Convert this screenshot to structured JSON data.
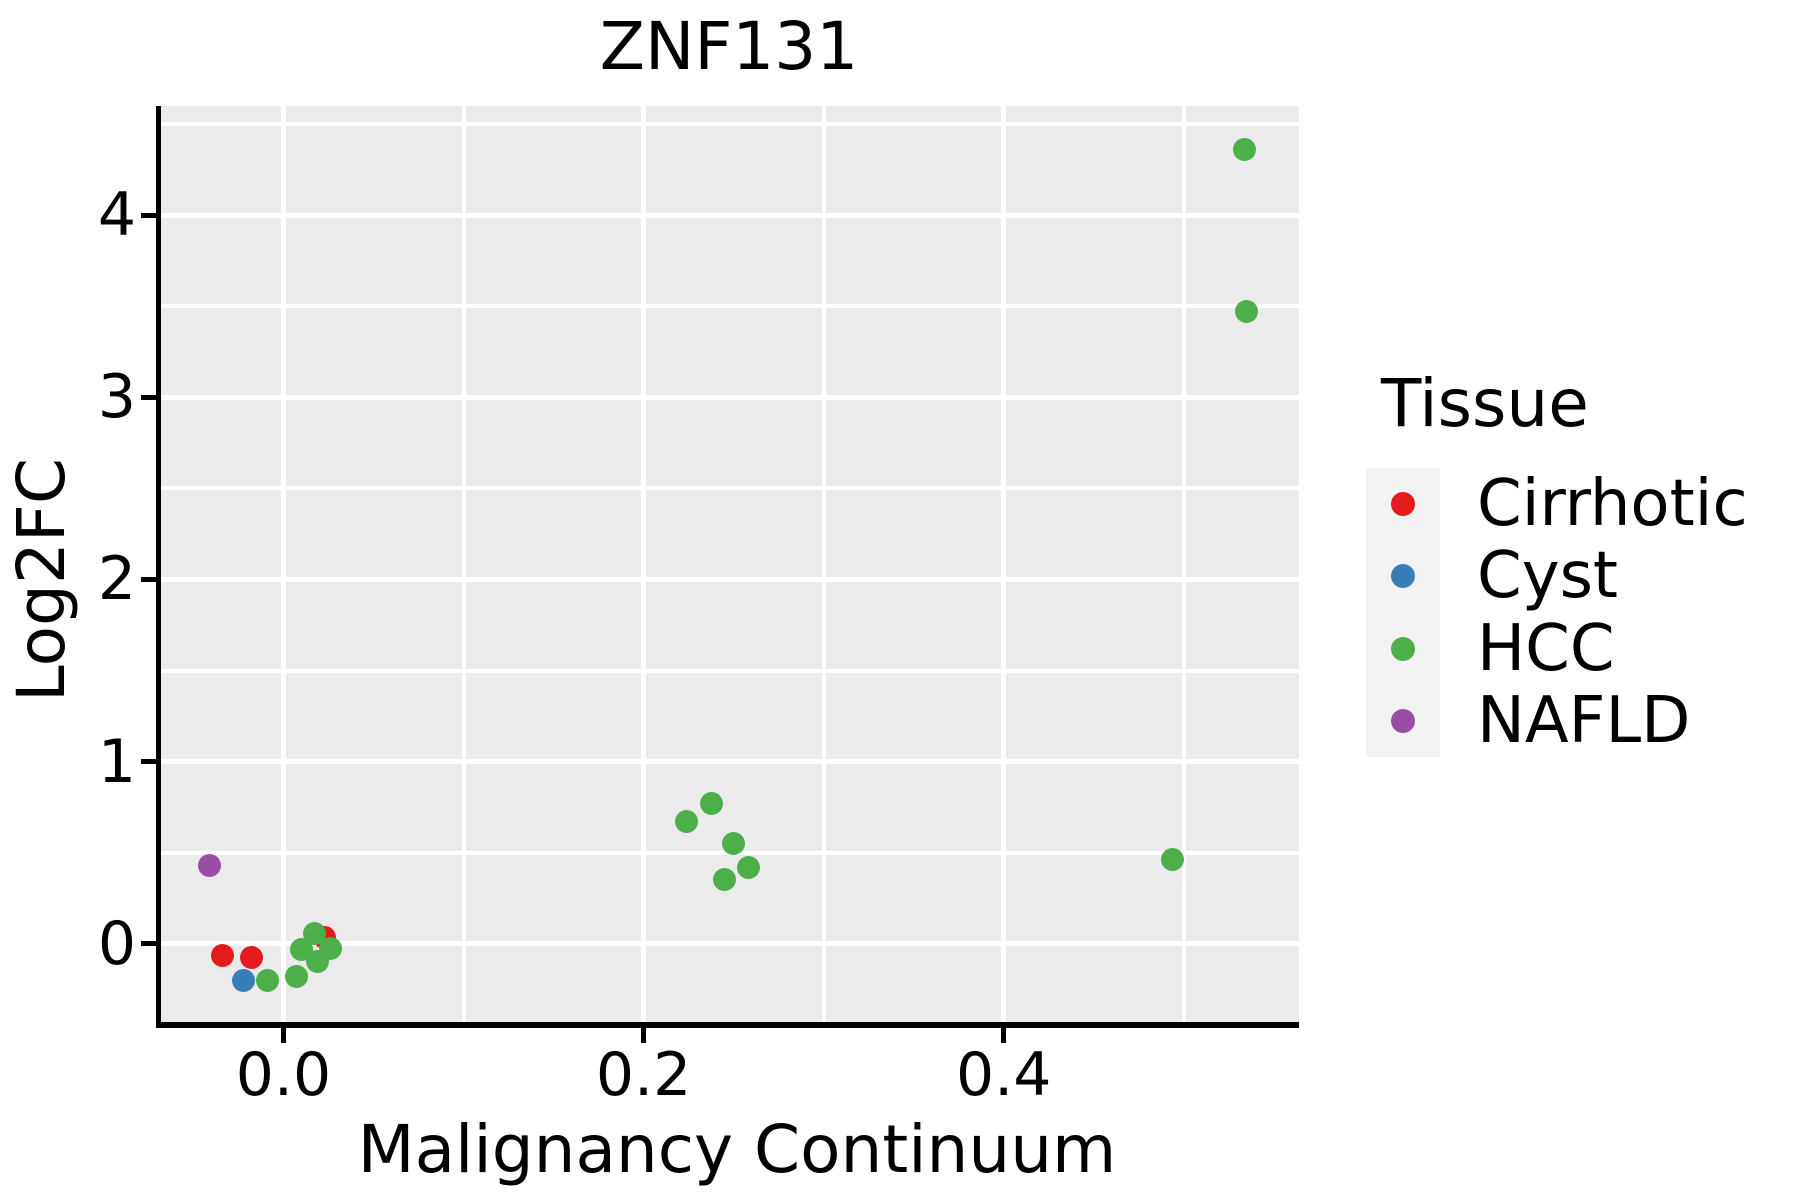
{
  "figure": {
    "background": "#ffffff",
    "text_color": "#000000"
  },
  "chart_data": {
    "type": "scatter",
    "title": "ZNF131",
    "xlabel": "Malignancy Continuum",
    "ylabel": "Log2FC",
    "xlim": [
      -0.068,
      0.564
    ],
    "ylim": [
      -0.43,
      4.6
    ],
    "grid": true,
    "panel_background": "#ebebeb",
    "grid_color": "#ffffff",
    "x_ticks": {
      "values": [
        0.0,
        0.2,
        0.4
      ],
      "labels": [
        "0.0",
        "0.2",
        "0.4"
      ],
      "minor": [
        0.1,
        0.3,
        0.5
      ]
    },
    "y_ticks": {
      "values": [
        0,
        1,
        2,
        3,
        4
      ],
      "labels": [
        "0",
        "1",
        "2",
        "3",
        "4"
      ],
      "minor": [
        0.5,
        1.5,
        2.5,
        3.5,
        4.5
      ]
    },
    "legend": {
      "title": "Tissue",
      "position": "right",
      "entries": [
        {
          "label": "Cirrhotic",
          "color": "#e41a1c"
        },
        {
          "label": "Cyst",
          "color": "#377eb8"
        },
        {
          "label": "HCC",
          "color": "#4daf4a"
        },
        {
          "label": "NAFLD",
          "color": "#984ea3"
        }
      ]
    },
    "point_radius_px": 11.5,
    "series": [
      {
        "name": "Cirrhotic",
        "color": "#e41a1c",
        "points": [
          [
            -0.034,
            -0.065
          ],
          [
            -0.018,
            -0.075
          ],
          [
            0.023,
            0.035
          ]
        ]
      },
      {
        "name": "Cyst",
        "color": "#377eb8",
        "points": [
          [
            -0.022,
            -0.2
          ]
        ]
      },
      {
        "name": "HCC",
        "color": "#4daf4a",
        "points": [
          [
            -0.009,
            -0.2
          ],
          [
            0.007,
            -0.18
          ],
          [
            0.01,
            -0.03
          ],
          [
            0.017,
            0.055
          ],
          [
            0.026,
            -0.025
          ],
          [
            0.019,
            -0.1
          ],
          [
            0.224,
            0.67
          ],
          [
            0.238,
            0.77
          ],
          [
            0.25,
            0.55
          ],
          [
            0.258,
            0.42
          ],
          [
            0.245,
            0.355
          ],
          [
            0.494,
            0.465
          ],
          [
            0.534,
            4.36
          ],
          [
            0.535,
            3.47
          ]
        ]
      },
      {
        "name": "NAFLD",
        "color": "#984ea3",
        "points": [
          [
            -0.041,
            0.43
          ]
        ]
      }
    ]
  }
}
